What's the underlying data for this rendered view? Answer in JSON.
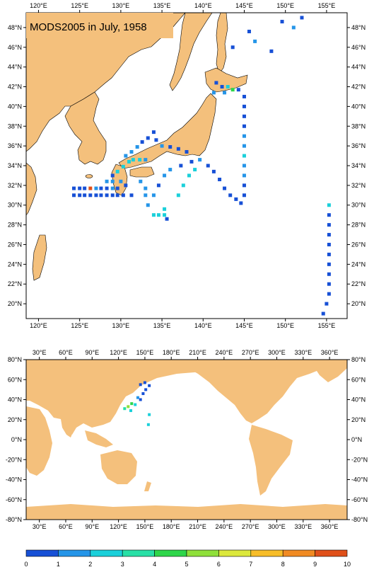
{
  "top_map": {
    "title": "MODS2005 in July, 1958",
    "lon_labels": [
      "120°E",
      "125°E",
      "130°E",
      "135°E",
      "140°E",
      "145°E",
      "150°E",
      "155°E"
    ],
    "lat_labels": [
      "20°N",
      "22°N",
      "24°N",
      "26°N",
      "28°N",
      "30°N",
      "32°N",
      "34°N",
      "36°N",
      "38°N",
      "40°N",
      "42°N",
      "44°N",
      "46°N",
      "48°N"
    ],
    "lon_range": [
      118.5,
      157.5
    ],
    "lat_range": [
      18.5,
      49.5
    ],
    "observations": [
      {
        "lon": 124.3,
        "lat": 31.7,
        "v": 0.5
      },
      {
        "lon": 125.0,
        "lat": 31.7,
        "v": 0.5
      },
      {
        "lon": 125.6,
        "lat": 31.7,
        "v": 0.5
      },
      {
        "lon": 126.3,
        "lat": 31.7,
        "v": 9.8
      },
      {
        "lon": 127.0,
        "lat": 31.7,
        "v": 1.3
      },
      {
        "lon": 127.6,
        "lat": 31.7,
        "v": 0.5
      },
      {
        "lon": 128.3,
        "lat": 31.7,
        "v": 0.5
      },
      {
        "lon": 129.0,
        "lat": 31.7,
        "v": 1.3
      },
      {
        "lon": 129.6,
        "lat": 31.7,
        "v": 0.5
      },
      {
        "lon": 124.3,
        "lat": 31.0,
        "v": 0.5
      },
      {
        "lon": 125.0,
        "lat": 31.0,
        "v": 0.5
      },
      {
        "lon": 125.6,
        "lat": 31.0,
        "v": 0.5
      },
      {
        "lon": 126.3,
        "lat": 31.0,
        "v": 0.5
      },
      {
        "lon": 127.0,
        "lat": 31.0,
        "v": 0.5
      },
      {
        "lon": 127.6,
        "lat": 31.0,
        "v": 0.5
      },
      {
        "lon": 128.3,
        "lat": 31.0,
        "v": 0.5
      },
      {
        "lon": 129.0,
        "lat": 31.0,
        "v": 0.5
      },
      {
        "lon": 129.6,
        "lat": 31.0,
        "v": 0.5
      },
      {
        "lon": 130.3,
        "lat": 31.0,
        "v": 0.5
      },
      {
        "lon": 128.3,
        "lat": 32.4,
        "v": 1.3
      },
      {
        "lon": 129.0,
        "lat": 32.4,
        "v": 1.3
      },
      {
        "lon": 129.0,
        "lat": 33.0,
        "v": 0.5
      },
      {
        "lon": 129.6,
        "lat": 33.4,
        "v": 2.3
      },
      {
        "lon": 130.3,
        "lat": 33.9,
        "v": 2.3
      },
      {
        "lon": 131.0,
        "lat": 34.4,
        "v": 2.3
      },
      {
        "lon": 130.6,
        "lat": 35.0,
        "v": 1.3
      },
      {
        "lon": 131.3,
        "lat": 35.4,
        "v": 1.3
      },
      {
        "lon": 132.0,
        "lat": 35.9,
        "v": 1.3
      },
      {
        "lon": 132.6,
        "lat": 36.4,
        "v": 0.5
      },
      {
        "lon": 133.3,
        "lat": 36.8,
        "v": 0.5
      },
      {
        "lon": 134.0,
        "lat": 37.4,
        "v": 0.5
      },
      {
        "lon": 134.3,
        "lat": 36.6,
        "v": 0.5
      },
      {
        "lon": 135.0,
        "lat": 36.0,
        "v": 1.3
      },
      {
        "lon": 136.0,
        "lat": 35.9,
        "v": 0.5
      },
      {
        "lon": 137.0,
        "lat": 35.7,
        "v": 0.5
      },
      {
        "lon": 138.0,
        "lat": 35.4,
        "v": 0.5
      },
      {
        "lon": 131.5,
        "lat": 34.6,
        "v": 2.3
      },
      {
        "lon": 132.3,
        "lat": 34.6,
        "v": 2.3
      },
      {
        "lon": 133.0,
        "lat": 34.6,
        "v": 1.3
      },
      {
        "lon": 130.0,
        "lat": 32.4,
        "v": 1.3
      },
      {
        "lon": 130.6,
        "lat": 32.0,
        "v": 0.5
      },
      {
        "lon": 131.3,
        "lat": 31.0,
        "v": 0.5
      },
      {
        "lon": 132.4,
        "lat": 32.4,
        "v": 1.3
      },
      {
        "lon": 133.0,
        "lat": 31.7,
        "v": 1.3
      },
      {
        "lon": 133.0,
        "lat": 31.0,
        "v": 1.3
      },
      {
        "lon": 133.3,
        "lat": 30.0,
        "v": 1.3
      },
      {
        "lon": 134.0,
        "lat": 29.0,
        "v": 2.3
      },
      {
        "lon": 134.6,
        "lat": 29.0,
        "v": 2.3
      },
      {
        "lon": 135.3,
        "lat": 29.0,
        "v": 2.3
      },
      {
        "lon": 135.3,
        "lat": 29.6,
        "v": 2.3
      },
      {
        "lon": 135.6,
        "lat": 28.6,
        "v": 0.5
      },
      {
        "lon": 134.0,
        "lat": 31.0,
        "v": 1.3
      },
      {
        "lon": 134.6,
        "lat": 32.0,
        "v": 0.5
      },
      {
        "lon": 135.3,
        "lat": 33.0,
        "v": 1.3
      },
      {
        "lon": 136.0,
        "lat": 33.6,
        "v": 1.3
      },
      {
        "lon": 137.3,
        "lat": 34.0,
        "v": 0.5
      },
      {
        "lon": 138.6,
        "lat": 34.4,
        "v": 0.5
      },
      {
        "lon": 139.6,
        "lat": 34.6,
        "v": 1.3
      },
      {
        "lon": 139.0,
        "lat": 33.6,
        "v": 2.3
      },
      {
        "lon": 138.3,
        "lat": 33.0,
        "v": 2.3
      },
      {
        "lon": 137.6,
        "lat": 32.0,
        "v": 2.3
      },
      {
        "lon": 137.0,
        "lat": 31.0,
        "v": 2.3
      },
      {
        "lon": 140.6,
        "lat": 34.0,
        "v": 0.5
      },
      {
        "lon": 141.3,
        "lat": 33.4,
        "v": 0.5
      },
      {
        "lon": 142.0,
        "lat": 32.6,
        "v": 0.5
      },
      {
        "lon": 142.6,
        "lat": 31.7,
        "v": 0.5
      },
      {
        "lon": 143.3,
        "lat": 31.0,
        "v": 0.5
      },
      {
        "lon": 144.0,
        "lat": 30.6,
        "v": 0.5
      },
      {
        "lon": 144.6,
        "lat": 30.2,
        "v": 0.5
      },
      {
        "lon": 145.0,
        "lat": 31.0,
        "v": 0.5
      },
      {
        "lon": 145.0,
        "lat": 32.0,
        "v": 0.5
      },
      {
        "lon": 145.0,
        "lat": 33.0,
        "v": 1.3
      },
      {
        "lon": 145.0,
        "lat": 34.0,
        "v": 1.3
      },
      {
        "lon": 145.0,
        "lat": 35.0,
        "v": 2.3
      },
      {
        "lon": 145.0,
        "lat": 36.0,
        "v": 1.3
      },
      {
        "lon": 145.0,
        "lat": 37.0,
        "v": 1.3
      },
      {
        "lon": 145.0,
        "lat": 38.0,
        "v": 0.5
      },
      {
        "lon": 145.0,
        "lat": 39.0,
        "v": 0.5
      },
      {
        "lon": 145.0,
        "lat": 40.0,
        "v": 0.5
      },
      {
        "lon": 145.0,
        "lat": 41.0,
        "v": 0.5
      },
      {
        "lon": 141.6,
        "lat": 42.4,
        "v": 0.5
      },
      {
        "lon": 142.3,
        "lat": 42.0,
        "v": 0.5
      },
      {
        "lon": 143.0,
        "lat": 42.0,
        "v": 2.3
      },
      {
        "lon": 143.6,
        "lat": 41.7,
        "v": 4.5
      },
      {
        "lon": 144.3,
        "lat": 41.7,
        "v": 0.5
      },
      {
        "lon": 141.3,
        "lat": 41.4,
        "v": 1.3
      },
      {
        "lon": 142.6,
        "lat": 41.4,
        "v": 1.3
      },
      {
        "lon": 143.6,
        "lat": 46.0,
        "v": 0.5
      },
      {
        "lon": 145.6,
        "lat": 47.6,
        "v": 0.5
      },
      {
        "lon": 146.3,
        "lat": 46.6,
        "v": 1.3
      },
      {
        "lon": 148.3,
        "lat": 45.6,
        "v": 0.5
      },
      {
        "lon": 149.6,
        "lat": 48.6,
        "v": 0.5
      },
      {
        "lon": 151.0,
        "lat": 48.0,
        "v": 1.3
      },
      {
        "lon": 152.0,
        "lat": 49.0,
        "v": 0.5
      },
      {
        "lon": 155.3,
        "lat": 30.0,
        "v": 2.3
      },
      {
        "lon": 155.3,
        "lat": 29.0,
        "v": 0.5
      },
      {
        "lon": 155.3,
        "lat": 28.0,
        "v": 0.5
      },
      {
        "lon": 155.3,
        "lat": 27.0,
        "v": 0.5
      },
      {
        "lon": 155.3,
        "lat": 26.0,
        "v": 0.5
      },
      {
        "lon": 155.3,
        "lat": 25.0,
        "v": 0.5
      },
      {
        "lon": 155.3,
        "lat": 24.0,
        "v": 0.5
      },
      {
        "lon": 155.3,
        "lat": 23.0,
        "v": 0.5
      },
      {
        "lon": 155.3,
        "lat": 22.0,
        "v": 0.5
      },
      {
        "lon": 155.3,
        "lat": 21.0,
        "v": 0.5
      },
      {
        "lon": 155.0,
        "lat": 20.0,
        "v": 0.5
      },
      {
        "lon": 154.6,
        "lat": 19.0,
        "v": 0.5
      }
    ]
  },
  "bottom_map": {
    "lon_labels": [
      "30°E",
      "60°E",
      "90°E",
      "120°E",
      "150°E",
      "180°E",
      "210°E",
      "240°E",
      "270°E",
      "300°E",
      "330°E",
      "360°E"
    ],
    "lat_labels": [
      "80°N",
      "60°N",
      "40°N",
      "20°N",
      "0°N",
      "-20°N",
      "-40°N",
      "-60°N",
      "-80°N"
    ],
    "lon_range": [
      15,
      380
    ],
    "lat_range": [
      -80,
      80
    ],
    "observations": [
      {
        "lon": 127,
        "lat": 31,
        "v": 3.3
      },
      {
        "lon": 131,
        "lat": 33,
        "v": 5.5
      },
      {
        "lon": 135,
        "lat": 36,
        "v": 4.5
      },
      {
        "lon": 139,
        "lat": 35,
        "v": 2.3
      },
      {
        "lon": 142,
        "lat": 42,
        "v": 1.3
      },
      {
        "lon": 145,
        "lat": 40,
        "v": 0.5
      },
      {
        "lon": 148,
        "lat": 46,
        "v": 0.5
      },
      {
        "lon": 151,
        "lat": 50,
        "v": 0.5
      },
      {
        "lon": 150,
        "lat": 57,
        "v": 0.5
      },
      {
        "lon": 145,
        "lat": 55,
        "v": 0.5
      },
      {
        "lon": 155,
        "lat": 54,
        "v": 0.5
      },
      {
        "lon": 155,
        "lat": 25,
        "v": 2.3
      },
      {
        "lon": 154,
        "lat": 15,
        "v": 2.3
      },
      {
        "lon": 134,
        "lat": 29,
        "v": 2.3
      }
    ]
  },
  "colorbar": {
    "labels": [
      "0",
      "1",
      "2",
      "3",
      "4",
      "5",
      "6",
      "7",
      "8",
      "9",
      "10"
    ],
    "colors": [
      "#1750d6",
      "#2595e8",
      "#1bd0da",
      "#28e0a6",
      "#2ed64a",
      "#8fe03a",
      "#dce83c",
      "#f7bd28",
      "#f08a22",
      "#e0501a"
    ]
  },
  "colors": {
    "land": "#f4c07c",
    "ocean": "#ffffff",
    "frame": "#000000"
  }
}
